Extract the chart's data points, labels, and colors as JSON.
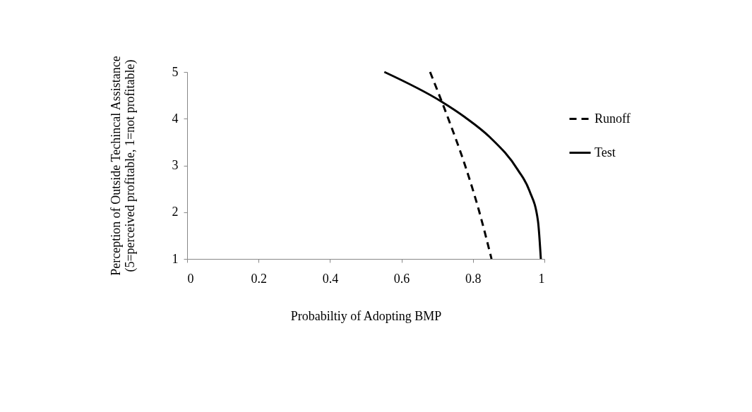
{
  "chart_data": {
    "type": "line",
    "xlabel": "Probabiltiy of Adopting BMP",
    "ylabel": "Perception of Outside Techincal Assistance\n(5=perceived profitable, 1=not profitable)",
    "series": [
      {
        "name": "Runoff",
        "color": "#000000",
        "line_style": "dashed",
        "x": [
          0.68,
          0.732,
          0.778,
          0.817,
          0.852
        ],
        "values": [
          5,
          3.98,
          3.0,
          2.03,
          1
        ]
      },
      {
        "name": "Test",
        "color": "#000000",
        "line_style": "solid",
        "x": [
          0.552,
          0.711,
          0.778,
          0.848,
          0.926,
          0.958,
          0.982,
          0.99
        ],
        "values": [
          5,
          4.37,
          4.03,
          3.6,
          2.9,
          2.46,
          1.81,
          1
        ]
      }
    ],
    "xlim": [
      0,
      1
    ],
    "xticks": [
      0,
      0.2,
      0.4,
      0.6,
      0.8,
      1
    ],
    "ylim": [
      1,
      5
    ],
    "yticks": [
      1,
      2,
      3,
      4,
      5
    ],
    "grid": false,
    "legend": "right",
    "marker": "none"
  }
}
